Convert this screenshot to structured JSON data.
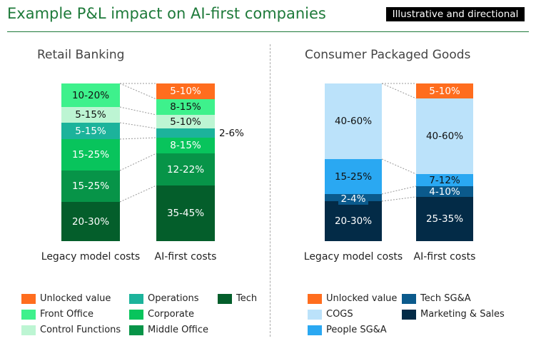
{
  "header": {
    "title": "Example P&L impact on AI-first companies",
    "badge": "Illustrative and directional"
  },
  "chart_data": [
    {
      "type": "stacked-bar",
      "title": "Retail Banking",
      "categories": [
        "Legacy model costs",
        "AI-first costs"
      ],
      "series": [
        {
          "name": "Tech",
          "color": "#045E2B",
          "values": [
            "20-30%",
            "35-45%"
          ],
          "text": "#fff"
        },
        {
          "name": "Middle Office",
          "color": "#079448",
          "values": [
            "15-25%",
            "12-22%"
          ],
          "text": "#fff"
        },
        {
          "name": "Corporate",
          "color": "#08C45C",
          "values": [
            "15-25%",
            "8-15%"
          ],
          "text": "#fff"
        },
        {
          "name": "Operations",
          "color": "#1CB39B",
          "values": [
            "5-15%",
            "2-6%"
          ],
          "text": "#fff"
        },
        {
          "name": "Control Functions",
          "color": "#BDF5D3",
          "values": [
            "5-15%",
            "5-10%"
          ],
          "text": "#111"
        },
        {
          "name": "Front Office",
          "color": "#3EF18C",
          "values": [
            "10-20%",
            "8-15%"
          ],
          "text": "#111"
        },
        {
          "name": "Unlocked value",
          "color": "#FF6D1E",
          "values": [
            null,
            "5-10%"
          ],
          "text": "#fff"
        }
      ],
      "legend": [
        "Unlocked value",
        "Front Office",
        "Control Functions",
        "Operations",
        "Corporate",
        "Middle Office",
        "Tech"
      ]
    },
    {
      "type": "stacked-bar",
      "title": "Consumer Packaged Goods",
      "categories": [
        "Legacy model costs",
        "AI-first costs"
      ],
      "series": [
        {
          "name": "Marketing & Sales",
          "color": "#032B47",
          "values": [
            "20-30%",
            "25-35%"
          ],
          "text": "#fff"
        },
        {
          "name": "Tech SG&A",
          "color": "#0B5A8C",
          "values": [
            "2-4%",
            "4-10%"
          ],
          "text": "#fff"
        },
        {
          "name": "People SG&A",
          "color": "#2AA8F2",
          "values": [
            "15-25%",
            "7-12%"
          ],
          "text": "#111"
        },
        {
          "name": "COGS",
          "color": "#BBE2FA",
          "values": [
            "40-60%",
            "40-60%"
          ],
          "text": "#111"
        },
        {
          "name": "Unlocked value",
          "color": "#FF6D1E",
          "values": [
            null,
            "5-10%"
          ],
          "text": "#fff"
        }
      ],
      "legend": [
        "Unlocked value",
        "COGS",
        "People SG&A",
        "Tech SG&A",
        "Marketing & Sales"
      ]
    }
  ]
}
